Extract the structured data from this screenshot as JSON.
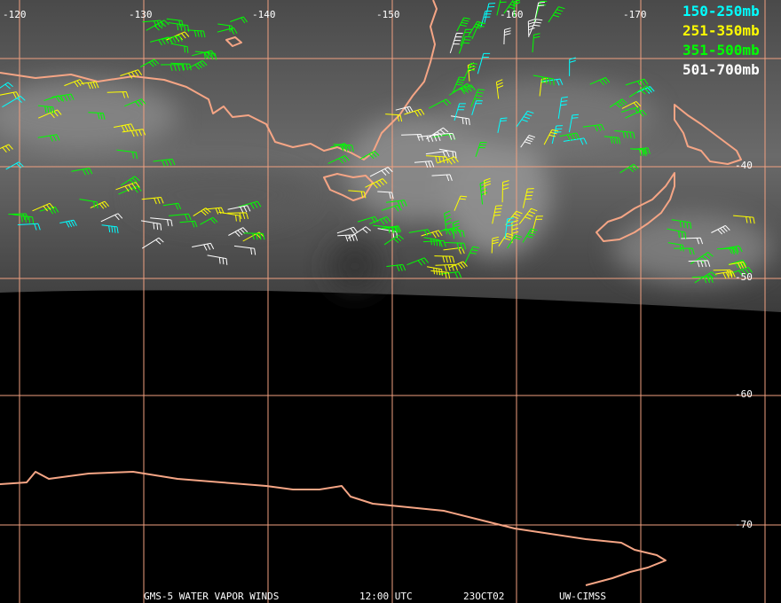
{
  "map": {
    "lon_labels": [
      "-120",
      "-130",
      "-140",
      "-150",
      "-160",
      "-170"
    ],
    "lat_labels": [
      "-40",
      "-50",
      "-60",
      "-70"
    ],
    "legend": [
      {
        "label": "150-250mb",
        "color": "#00ffff"
      },
      {
        "label": "251-350mb",
        "color": "#ffff00"
      },
      {
        "label": "351-500mb",
        "color": "#00ff00"
      },
      {
        "label": "501-700mb",
        "color": "#ffffff"
      }
    ],
    "footer": [
      "GMS-5 WATER VAPOR WINDS",
      "12:00 UTC",
      "23OCT02",
      "UW-CIMSS"
    ]
  }
}
